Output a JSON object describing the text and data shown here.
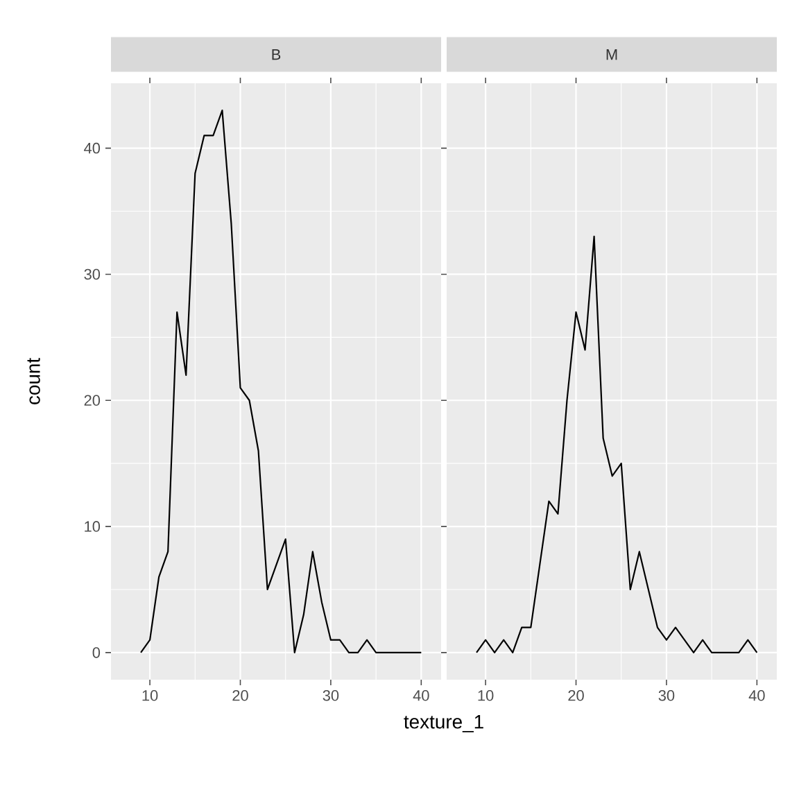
{
  "chart_data": [
    {
      "type": "line",
      "title": "B",
      "xlabel": "texture_1",
      "ylabel": "count",
      "x": [
        9,
        10,
        11,
        12,
        13,
        14,
        15,
        16,
        17,
        18,
        19,
        20,
        21,
        22,
        23,
        24,
        25,
        26,
        27,
        28,
        29,
        30,
        31,
        32,
        33,
        34,
        35,
        36,
        37,
        38,
        39,
        40
      ],
      "series": [
        {
          "color": "#000000",
          "values": [
            0,
            1,
            6,
            8,
            27,
            22,
            38,
            41,
            41,
            43,
            34,
            21,
            20,
            16,
            5,
            7,
            9,
            0,
            3,
            8,
            4,
            1,
            1,
            0,
            0,
            1,
            0,
            0,
            0,
            0,
            0,
            0
          ]
        }
      ],
      "xlim": [
        5.7,
        42.2
      ],
      "ylim": [
        -2.15,
        45.15
      ],
      "xticks": [
        10,
        20,
        30,
        40
      ],
      "yticks": [
        0,
        10,
        20,
        30,
        40
      ],
      "grid": true
    },
    {
      "type": "line",
      "title": "M",
      "x": [
        9,
        10,
        11,
        12,
        13,
        14,
        15,
        16,
        17,
        18,
        19,
        20,
        21,
        22,
        23,
        24,
        25,
        26,
        27,
        28,
        29,
        30,
        31,
        32,
        33,
        34,
        35,
        36,
        37,
        38,
        39,
        40
      ],
      "series": [
        {
          "color": "#000000",
          "values": [
            0,
            1,
            0,
            1,
            0,
            2,
            2,
            7,
            12,
            11,
            20,
            27,
            24,
            33,
            17,
            14,
            15,
            5,
            8,
            5,
            2,
            1,
            2,
            1,
            0,
            1,
            0,
            0,
            0,
            0,
            1,
            0
          ]
        }
      ],
      "xlim": [
        5.7,
        42.2
      ],
      "ylim": [
        -2.15,
        45.15
      ],
      "xticks": [
        10,
        20,
        30,
        40
      ],
      "yticks": [
        0,
        10,
        20,
        30,
        40
      ],
      "grid": true,
      "tick_labels": "x"
    }
  ]
}
